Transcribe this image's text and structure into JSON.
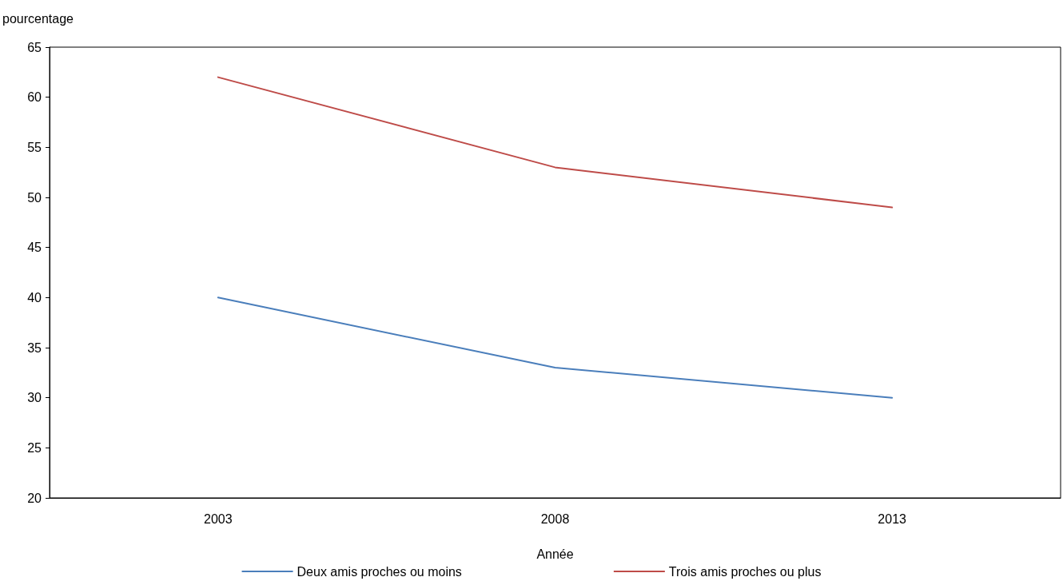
{
  "chart_data": {
    "type": "line",
    "xlabel": "Année",
    "ylabel": "pourcentage",
    "categories": [
      "2003",
      "2008",
      "2013"
    ],
    "series": [
      {
        "name": "Deux amis proches ou moins",
        "color": "#4a7ebb",
        "values": [
          40,
          33,
          30
        ]
      },
      {
        "name": "Trois amis proches ou plus",
        "color": "#be4b48",
        "values": [
          62,
          53,
          49
        ]
      }
    ],
    "ylim": [
      20,
      65
    ],
    "yticks": [
      20,
      25,
      30,
      35,
      40,
      45,
      50,
      55,
      60,
      65
    ],
    "grid": false,
    "legend": "bottom",
    "marker": "none",
    "line_style": "solid"
  }
}
